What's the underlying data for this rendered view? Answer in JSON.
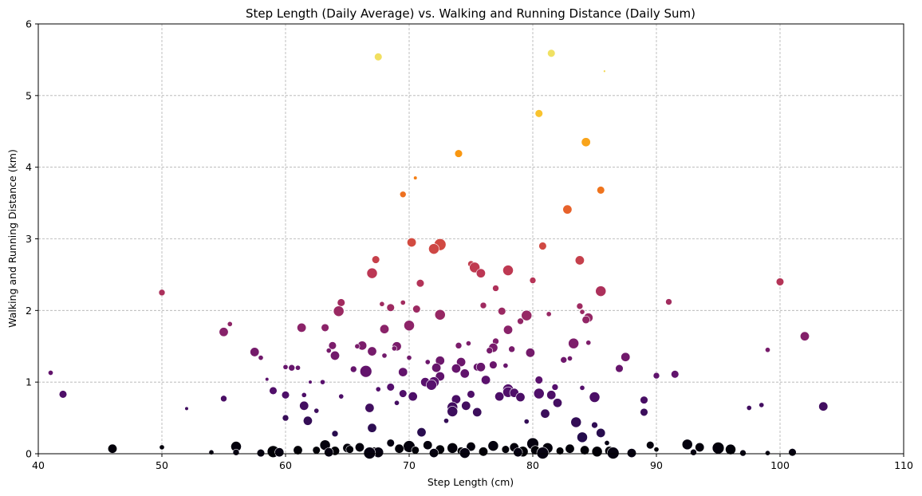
{
  "chart_data": {
    "type": "scatter",
    "title": "Step Length (Daily Average) vs. Walking and Running Distance (Daily Sum)",
    "xlabel": "Step Length (cm)",
    "ylabel": "Walking and Running Distance (km)",
    "xlim": [
      40,
      110
    ],
    "ylim": [
      0,
      6
    ],
    "xticks": [
      "40",
      "50",
      "60",
      "70",
      "80",
      "90",
      "100",
      "110"
    ],
    "yticks": [
      "0",
      "1",
      "2",
      "3",
      "4",
      "5",
      "6"
    ],
    "grid": true,
    "colormap": "inferno",
    "color_encodes": "Walking and Running Distance (km)",
    "points": [
      [
        41.0,
        1.13,
        3
      ],
      [
        42.0,
        0.83,
        5
      ],
      [
        46.0,
        0.07,
        6
      ],
      [
        50.0,
        2.25,
        4
      ],
      [
        50.0,
        0.09,
        3
      ],
      [
        52.0,
        0.63,
        2
      ],
      [
        54.0,
        0.02,
        3
      ],
      [
        55.0,
        1.7,
        6
      ],
      [
        55.0,
        0.77,
        4
      ],
      [
        55.5,
        1.81,
        3
      ],
      [
        56.0,
        0.1,
        7
      ],
      [
        56.0,
        0.02,
        4
      ],
      [
        57.5,
        1.42,
        6
      ],
      [
        58.0,
        1.34,
        3
      ],
      [
        58.0,
        0.01,
        5
      ],
      [
        58.5,
        1.04,
        2
      ],
      [
        59.0,
        0.88,
        5
      ],
      [
        59.0,
        0.03,
        8
      ],
      [
        59.5,
        0.02,
        6
      ],
      [
        60.0,
        1.21,
        3
      ],
      [
        60.0,
        0.82,
        5
      ],
      [
        60.0,
        0.5,
        4
      ],
      [
        60.5,
        1.2,
        4
      ],
      [
        61.0,
        1.2,
        3
      ],
      [
        61.0,
        0.05,
        6
      ],
      [
        61.3,
        1.76,
        6
      ],
      [
        61.5,
        0.82,
        3
      ],
      [
        61.5,
        0.67,
        6
      ],
      [
        61.8,
        0.46,
        6
      ],
      [
        62.0,
        1.0,
        2
      ],
      [
        62.5,
        0.6,
        3
      ],
      [
        63.0,
        1.0,
        3
      ],
      [
        63.2,
        1.76,
        5
      ],
      [
        63.5,
        1.44,
        3
      ],
      [
        63.8,
        1.51,
        5
      ],
      [
        64.0,
        1.37,
        6
      ],
      [
        64.0,
        0.28,
        4
      ],
      [
        64.5,
        2.11,
        5
      ],
      [
        64.3,
        1.99,
        7
      ],
      [
        64.5,
        0.8,
        3
      ],
      [
        65.0,
        0.08,
        6
      ],
      [
        65.5,
        1.18,
        4
      ],
      [
        65.8,
        1.5,
        3
      ],
      [
        66.2,
        1.51,
        6
      ],
      [
        66.5,
        1.15,
        8
      ],
      [
        66.8,
        0.64,
        6
      ],
      [
        67.0,
        2.52,
        7
      ],
      [
        67.0,
        1.43,
        6
      ],
      [
        67.0,
        0.36,
        6
      ],
      [
        67.5,
        5.54,
        5
      ],
      [
        67.3,
        2.71,
        5
      ],
      [
        67.5,
        0.9,
        3
      ],
      [
        67.5,
        0.02,
        7
      ],
      [
        67.8,
        2.09,
        3
      ],
      [
        68.0,
        1.74,
        6
      ],
      [
        68.0,
        1.37,
        3
      ],
      [
        68.5,
        2.04,
        5
      ],
      [
        68.5,
        0.93,
        5
      ],
      [
        68.8,
        1.47,
        3
      ],
      [
        69.0,
        1.5,
        6
      ],
      [
        69.0,
        0.71,
        3
      ],
      [
        69.5,
        3.62,
        4
      ],
      [
        69.5,
        2.11,
        3
      ],
      [
        69.5,
        1.14,
        6
      ],
      [
        69.5,
        0.84,
        5
      ],
      [
        70.0,
        1.79,
        7
      ],
      [
        70.0,
        1.34,
        3
      ],
      [
        70.0,
        0.1,
        8
      ],
      [
        70.2,
        2.95,
        6
      ],
      [
        70.3,
        0.8,
        6
      ],
      [
        70.5,
        3.85,
        2
      ],
      [
        70.6,
        2.02,
        5
      ],
      [
        70.9,
        2.38,
        5
      ],
      [
        71.0,
        0.3,
        6
      ],
      [
        71.3,
        1.0,
        6
      ],
      [
        71.5,
        1.28,
        3
      ],
      [
        71.8,
        0.96,
        7
      ],
      [
        72.0,
        2.86,
        7
      ],
      [
        72.0,
        1.0,
        7
      ],
      [
        72.2,
        1.2,
        6
      ],
      [
        72.5,
        2.92,
        8
      ],
      [
        72.5,
        1.94,
        7
      ],
      [
        72.5,
        1.3,
        6
      ],
      [
        72.5,
        1.08,
        6
      ],
      [
        73.0,
        0.46,
        3
      ],
      [
        73.5,
        0.59,
        7
      ],
      [
        73.5,
        0.65,
        7
      ],
      [
        73.8,
        1.19,
        6
      ],
      [
        73.8,
        0.76,
        6
      ],
      [
        74.0,
        4.19,
        5
      ],
      [
        74.0,
        1.51,
        4
      ],
      [
        74.2,
        1.28,
        6
      ],
      [
        74.5,
        1.12,
        6
      ],
      [
        74.6,
        0.67,
        6
      ],
      [
        74.8,
        1.54,
        3
      ],
      [
        75.0,
        2.65,
        4
      ],
      [
        75.0,
        0.83,
        5
      ],
      [
        75.3,
        2.6,
        7
      ],
      [
        75.5,
        1.21,
        5
      ],
      [
        75.5,
        0.58,
        6
      ],
      [
        75.8,
        2.52,
        6
      ],
      [
        75.8,
        1.21,
        6
      ],
      [
        76.0,
        2.07,
        4
      ],
      [
        76.2,
        1.03,
        6
      ],
      [
        76.5,
        1.44,
        4
      ],
      [
        76.8,
        1.48,
        6
      ],
      [
        76.8,
        1.24,
        5
      ],
      [
        77.0,
        2.31,
        4
      ],
      [
        77.0,
        1.57,
        4
      ],
      [
        77.3,
        0.8,
        6
      ],
      [
        77.5,
        1.99,
        5
      ],
      [
        77.8,
        1.23,
        3
      ],
      [
        78.0,
        2.56,
        7
      ],
      [
        78.0,
        1.73,
        6
      ],
      [
        78.0,
        0.9,
        7
      ],
      [
        78.0,
        0.86,
        7
      ],
      [
        78.3,
        1.46,
        4
      ],
      [
        78.5,
        0.85,
        6
      ],
      [
        79.0,
        1.85,
        4
      ],
      [
        79.0,
        0.79,
        6
      ],
      [
        79.5,
        1.93,
        7
      ],
      [
        79.5,
        0.45,
        3
      ],
      [
        79.8,
        1.41,
        6
      ],
      [
        80.0,
        2.42,
        4
      ],
      [
        80.0,
        0.14,
        8
      ],
      [
        80.5,
        4.75,
        5
      ],
      [
        80.5,
        1.03,
        5
      ],
      [
        80.5,
        0.84,
        7
      ],
      [
        80.8,
        2.9,
        5
      ],
      [
        81.0,
        0.56,
        6
      ],
      [
        81.3,
        1.95,
        3
      ],
      [
        81.5,
        5.59,
        5
      ],
      [
        81.5,
        0.82,
        6
      ],
      [
        81.8,
        0.93,
        4
      ],
      [
        82.0,
        0.71,
        6
      ],
      [
        82.5,
        1.31,
        4
      ],
      [
        82.8,
        3.41,
        6
      ],
      [
        83.0,
        1.33,
        3
      ],
      [
        83.3,
        1.54,
        7
      ],
      [
        83.5,
        0.44,
        7
      ],
      [
        83.8,
        2.7,
        6
      ],
      [
        83.8,
        2.06,
        4
      ],
      [
        84.0,
        1.98,
        3
      ],
      [
        84.0,
        0.92,
        3
      ],
      [
        84.0,
        0.23,
        7
      ],
      [
        84.3,
        4.35,
        6
      ],
      [
        84.3,
        1.87,
        5
      ],
      [
        84.5,
        1.55,
        3
      ],
      [
        84.5,
        1.9,
        6
      ],
      [
        85.0,
        0.79,
        7
      ],
      [
        85.0,
        0.4,
        4
      ],
      [
        85.5,
        3.68,
        5
      ],
      [
        85.5,
        2.27,
        7
      ],
      [
        85.5,
        0.29,
        6
      ],
      [
        85.8,
        5.34,
        1
      ],
      [
        86.0,
        0.15,
        3
      ],
      [
        86.5,
        0.01,
        8
      ],
      [
        87.0,
        1.19,
        5
      ],
      [
        87.5,
        1.35,
        6
      ],
      [
        88.0,
        0.01,
        6
      ],
      [
        89.0,
        0.75,
        5
      ],
      [
        89.0,
        0.58,
        5
      ],
      [
        89.5,
        0.12,
        5
      ],
      [
        90.0,
        1.09,
        4
      ],
      [
        90.0,
        0.06,
        3
      ],
      [
        91.0,
        2.12,
        4
      ],
      [
        91.5,
        1.11,
        5
      ],
      [
        92.5,
        0.13,
        7
      ],
      [
        93.0,
        0.02,
        4
      ],
      [
        93.5,
        0.09,
        6
      ],
      [
        95.0,
        0.08,
        8
      ],
      [
        96.0,
        0.06,
        7
      ],
      [
        97.0,
        0.01,
        4
      ],
      [
        97.5,
        0.64,
        3
      ],
      [
        98.5,
        0.68,
        3
      ],
      [
        99.0,
        1.45,
        3
      ],
      [
        99.0,
        0.01,
        3
      ],
      [
        100.0,
        2.4,
        5
      ],
      [
        101.0,
        0.02,
        5
      ],
      [
        102.0,
        1.64,
        6
      ],
      [
        103.5,
        0.66,
        6
      ],
      [
        62.5,
        0.05,
        5
      ],
      [
        63.2,
        0.12,
        7
      ],
      [
        64.0,
        0.04,
        6
      ],
      [
        65.2,
        0.06,
        5
      ],
      [
        66.0,
        0.09,
        6
      ],
      [
        67.2,
        0.03,
        6
      ],
      [
        68.5,
        0.15,
        5
      ],
      [
        69.2,
        0.07,
        6
      ],
      [
        70.5,
        0.05,
        5
      ],
      [
        71.5,
        0.12,
        6
      ],
      [
        72.5,
        0.06,
        6
      ],
      [
        73.5,
        0.08,
        7
      ],
      [
        74.2,
        0.04,
        5
      ],
      [
        75.0,
        0.1,
        6
      ],
      [
        76.0,
        0.03,
        6
      ],
      [
        76.8,
        0.11,
        7
      ],
      [
        77.8,
        0.06,
        5
      ],
      [
        78.5,
        0.09,
        6
      ],
      [
        79.2,
        0.03,
        7
      ],
      [
        80.2,
        0.05,
        6
      ],
      [
        81.2,
        0.08,
        7
      ],
      [
        82.2,
        0.04,
        5
      ],
      [
        83.0,
        0.07,
        6
      ],
      [
        84.2,
        0.05,
        6
      ],
      [
        85.2,
        0.03,
        7
      ],
      [
        86.2,
        0.04,
        6
      ],
      [
        63.5,
        0.02,
        6
      ],
      [
        66.8,
        0.01,
        8
      ],
      [
        74.5,
        0.01,
        7
      ],
      [
        80.8,
        0.01,
        8
      ],
      [
        78.8,
        0.02,
        6
      ],
      [
        72.0,
        0.01,
        6
      ]
    ]
  }
}
